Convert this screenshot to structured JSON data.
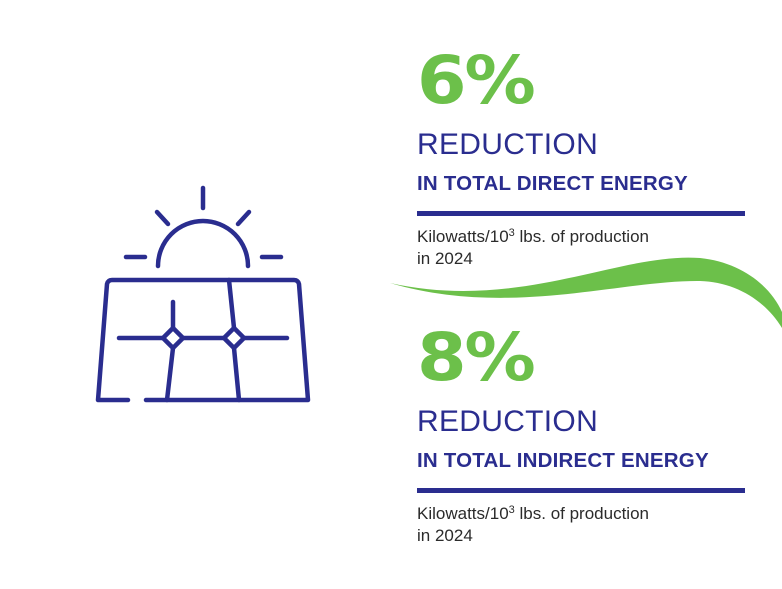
{
  "colors": {
    "accent": "#6cc04a",
    "primary": "#2a2d8f",
    "text": "#2b2b2b",
    "background": "#ffffff"
  },
  "icon": {
    "name": "solar-panel-with-sun-icon"
  },
  "stats": [
    {
      "value": "6%",
      "heading": "REDUCTION",
      "subheading": "IN TOTAL DIRECT ENERGY",
      "note_prefix": "Kilowatts/10",
      "note_superscript": "3",
      "note_suffix": " lbs. of production",
      "note_line2": "in 2024"
    },
    {
      "value": "8%",
      "heading": "REDUCTION",
      "subheading": "IN TOTAL INDIRECT ENERGY",
      "note_prefix": "Kilowatts/10",
      "note_superscript": "3",
      "note_suffix": " lbs. of production",
      "note_line2": "in 2024"
    }
  ]
}
